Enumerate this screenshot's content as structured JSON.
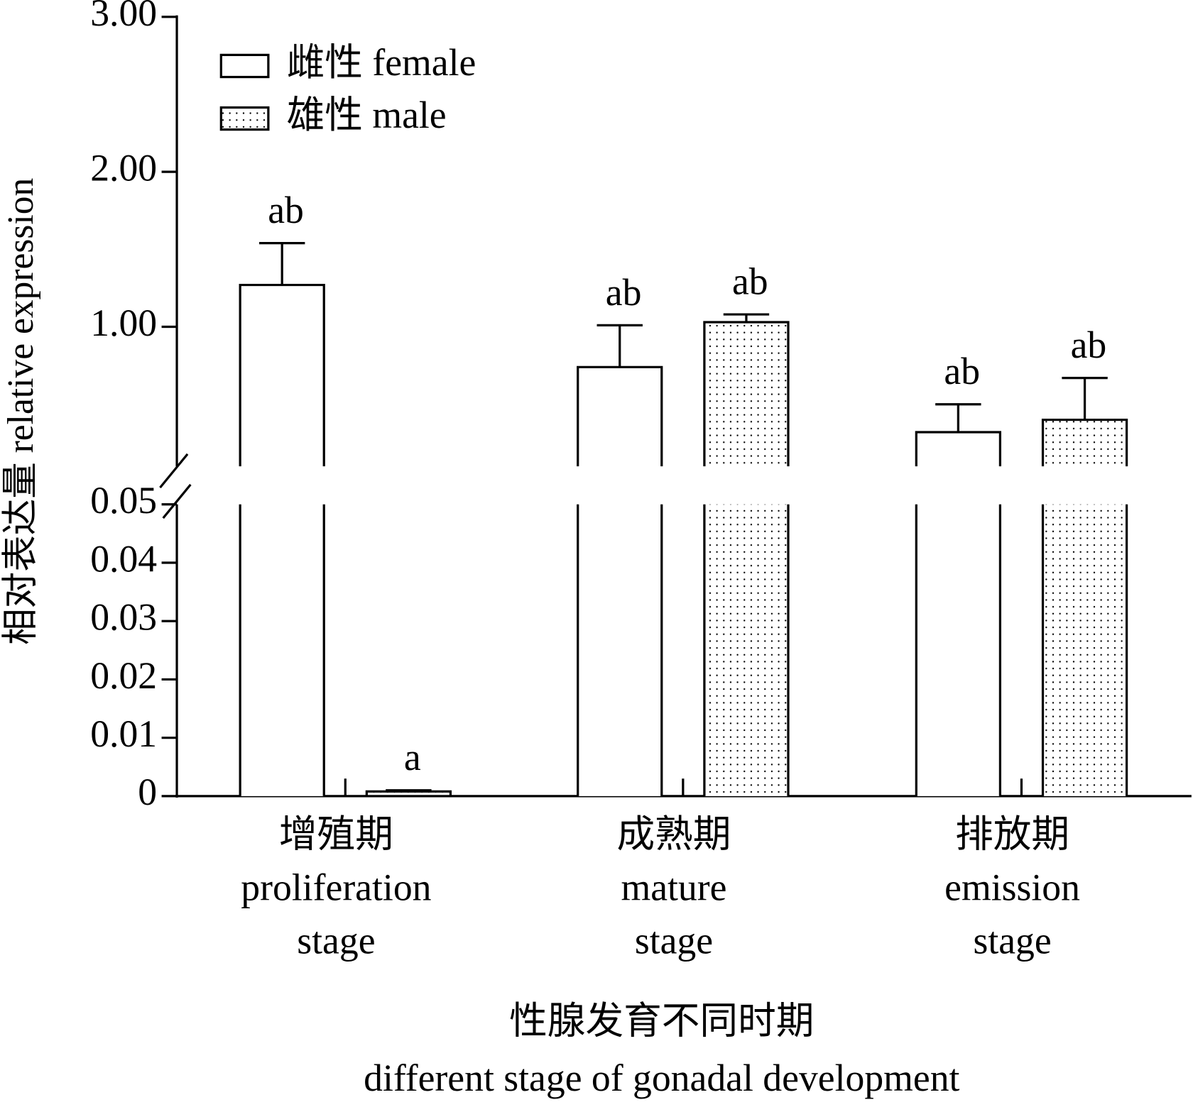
{
  "chart_data": {
    "type": "bar",
    "y_label": "相对表达量 relative expression",
    "x_label": [
      "性腺发育不同时期",
      "different stage of gonadal development"
    ],
    "categories": [
      [
        "增殖期",
        "proliferation",
        "stage"
      ],
      [
        "成熟期",
        "mature",
        "stage"
      ],
      [
        "排放期",
        "emission",
        "stage"
      ]
    ],
    "broken_axis": true,
    "axis_segments": [
      {
        "ylim": [
          0,
          0.05
        ],
        "yticks": [
          0,
          0.01,
          0.02,
          0.03,
          0.04,
          {
            "value": 0.05,
            "label": "0.05"
          }
        ]
      },
      {
        "ylim": [
          0.1,
          3
        ],
        "yticks": [
          {
            "value": 1,
            "label": "1.00"
          },
          {
            "value": 2,
            "label": "2.00"
          },
          {
            "value": 3,
            "label": "3.00"
          }
        ]
      }
    ],
    "legend": "top-left",
    "series": [
      {
        "name": "雌性 female",
        "color": "#ffffff",
        "pattern": "none",
        "values": [
          1.27,
          0.74,
          0.32
        ],
        "errors": [
          0.27,
          0.27,
          0.18
        ],
        "significance": [
          "ab",
          "ab",
          "ab"
        ]
      },
      {
        "name": "雄性 male",
        "color": "#ffffff",
        "pattern": "dots",
        "values": [
          0.0008,
          1.03,
          0.4
        ],
        "errors": [
          0.0002,
          0.05,
          0.27
        ],
        "significance": [
          "a",
          "ab",
          "ab"
        ]
      }
    ]
  }
}
